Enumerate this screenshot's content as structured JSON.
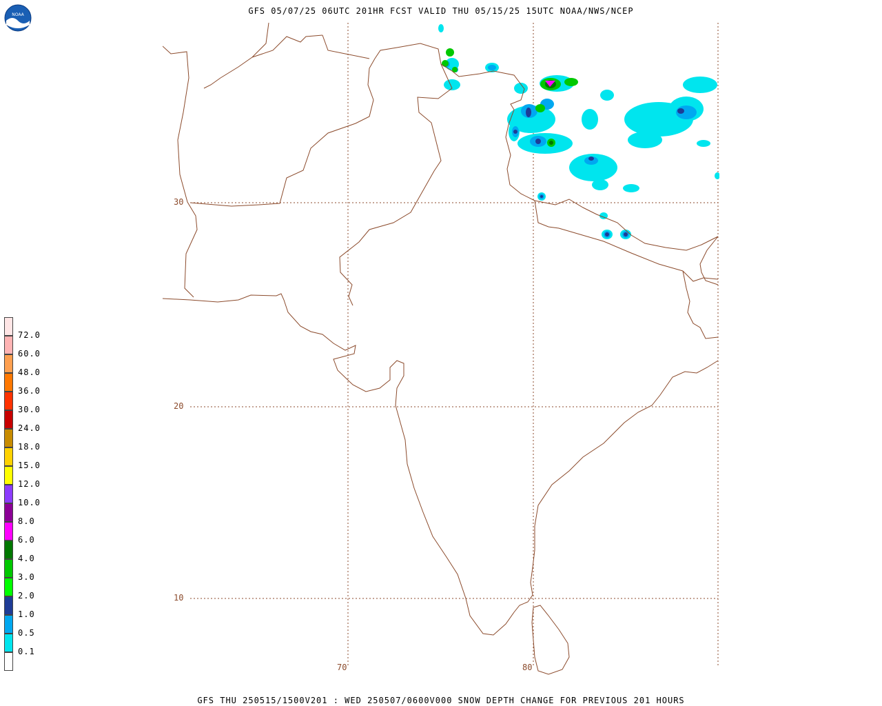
{
  "header": {
    "title": "GFS 05/07/25 06UTC 201HR FCST VALID THU 05/15/25 15UTC NOAA/NWS/NCEP",
    "logo_text": "NOAA"
  },
  "footer": {
    "title": "GFS THU 250515/1500V201 : WED 250507/0600V000 SNOW DEPTH CHANGE FOR PREVIOUS 201 HOURS"
  },
  "map": {
    "lat_labels": [
      "30",
      "20",
      "10"
    ],
    "lon_labels": [
      "70",
      "80"
    ],
    "border_color": "#8b4a2b",
    "grid_color": "#8b4a2b"
  },
  "legend": {
    "levels": [
      {
        "label": "",
        "color": "#ffffff"
      },
      {
        "label": "0.1",
        "color": "#00e5ee"
      },
      {
        "label": "0.5",
        "color": "#00a8f0"
      },
      {
        "label": "1.0",
        "color": "#1e3c96"
      },
      {
        "label": "2.0",
        "color": "#00ff00"
      },
      {
        "label": "3.0",
        "color": "#00c800"
      },
      {
        "label": "4.0",
        "color": "#007800"
      },
      {
        "label": "6.0",
        "color": "#ff00ff"
      },
      {
        "label": "8.0",
        "color": "#8c0096"
      },
      {
        "label": "10.0",
        "color": "#8c3cff"
      },
      {
        "label": "12.0",
        "color": "#ffff00"
      },
      {
        "label": "15.0",
        "color": "#ffd200"
      },
      {
        "label": "18.0",
        "color": "#c88c00"
      },
      {
        "label": "24.0",
        "color": "#c80000"
      },
      {
        "label": "30.0",
        "color": "#ff3200"
      },
      {
        "label": "36.0",
        "color": "#ff7800"
      },
      {
        "label": "48.0",
        "color": "#ffa050"
      },
      {
        "label": "60.0",
        "color": "#ffb4b4"
      },
      {
        "label": "72.0",
        "color": "#ffe6e6"
      }
    ]
  }
}
